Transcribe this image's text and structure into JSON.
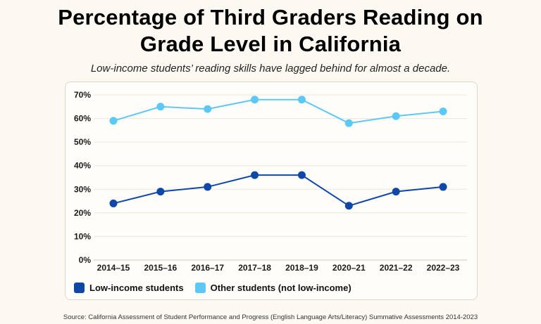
{
  "chart_data": {
    "type": "line",
    "title_line1": "Percentage of Third Graders Reading on",
    "title_line2": "Grade Level in California",
    "subtitle": "Low-income students’ reading skills have lagged behind for almost a decade.",
    "categories": [
      "2014–15",
      "2015–16",
      "2016–17",
      "2017–18",
      "2018–19",
      "2020–21",
      "2021–22",
      "2022–23"
    ],
    "ylim": [
      0,
      70
    ],
    "yticks": [
      "0%",
      "10%",
      "20%",
      "30%",
      "40%",
      "50%",
      "60%",
      "70%"
    ],
    "grid": true,
    "legend_position": "bottom-left",
    "series": [
      {
        "name": "Low-income students",
        "color": "#0d47a8",
        "values": [
          24,
          29,
          31,
          36,
          36,
          23,
          29,
          31
        ]
      },
      {
        "name": "Other students (not low-income)",
        "color": "#5bc8f5",
        "values": [
          59,
          65,
          64,
          68,
          68,
          58,
          61,
          63
        ]
      }
    ],
    "source_line1": "Source: California Assessment of Student Performance and Progress (English Language Arts/Literacy) Summative Assessments 2014-2023",
    "source_line2": ""
  }
}
